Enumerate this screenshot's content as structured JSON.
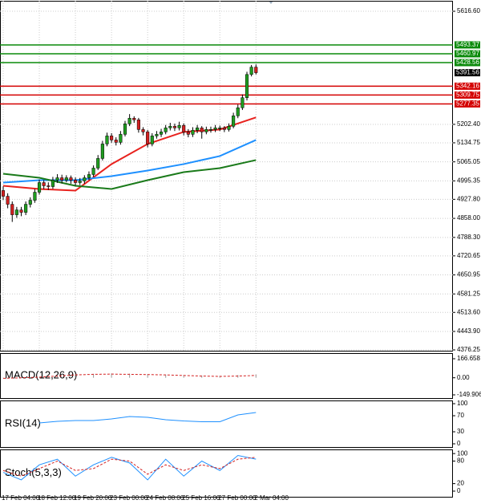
{
  "chart_data": [
    {
      "type": "candlestick",
      "categories": [
        "17 Feb 04:00",
        null,
        null,
        null,
        null,
        null,
        null,
        null,
        "18 Feb 12:00",
        null,
        null,
        null,
        null,
        null,
        null,
        null,
        "19 Feb 20:00",
        null,
        null,
        null,
        null,
        null,
        null,
        null,
        "23 Feb 00:00",
        null,
        null,
        null,
        null,
        null,
        null,
        null,
        "24 Feb 08:00",
        null,
        null,
        null,
        null,
        null,
        null,
        null,
        "25 Feb 16:00",
        null,
        null,
        null,
        null,
        null,
        null,
        null,
        "27 Feb 00:00",
        null,
        null,
        null,
        null,
        null,
        null,
        null,
        "2 Mar 04:00"
      ],
      "open": [
        4960,
        4939.0,
        4909.6,
        4871.3,
        4888.9,
        4880.1,
        4909.6,
        4924.3,
        4953.8,
        4989.1,
        4977.4,
        4974.4,
        4998.0,
        5006.8,
        4998.0,
        5006.8,
        4998.0,
        4989.1,
        4995.0,
        5006.8,
        5018.6,
        5042.1,
        5077.5,
        5130.5,
        5160.0,
        5145.2,
        5136.4,
        5165.9,
        5204.2,
        5224.8,
        5218.9,
        5183.5,
        5174.7,
        5130.5,
        5160.0,
        5165.9,
        5174.7,
        5189.4,
        5195.3,
        5189.4,
        5198.3,
        5174.7,
        5165.9,
        5180.6,
        5189.4,
        5174.7,
        5183.5,
        5183.5,
        5189.4,
        5189.4,
        5183.5,
        5195.3,
        5233.6,
        5263.1,
        5300,
        5385,
        5412
      ],
      "high": [
        4975,
        4950,
        4920,
        4900,
        4900,
        4920,
        4935,
        4965,
        5000,
        4998,
        4990,
        5010,
        5020,
        5018,
        5016,
        5015,
        5008,
        5006,
        5016,
        5030,
        5052,
        5090,
        5142,
        5172,
        5170,
        5155,
        5178,
        5215,
        5240,
        5232,
        5226,
        5192,
        5182,
        5170,
        5178,
        5186,
        5200,
        5208,
        5205,
        5212,
        5206,
        5185,
        5192,
        5200,
        5196,
        5194,
        5194,
        5200,
        5198,
        5196,
        5206,
        5245,
        5275,
        5312,
        5395,
        5420,
        5422
      ],
      "low": [
        4925,
        4895,
        4845,
        4860,
        4866,
        4870,
        4898,
        4915,
        4945,
        4965,
        4962,
        4966,
        4988,
        4986,
        4990,
        4985,
        4978,
        4980,
        4985,
        4998,
        5010,
        5035,
        5070,
        5122,
        5135,
        5125,
        5128,
        5158,
        5196,
        5208,
        5172,
        5162,
        5118,
        5122,
        5150,
        5156,
        5166,
        5180,
        5178,
        5180,
        5162,
        5155,
        5156,
        5170,
        5150,
        5166,
        5172,
        5174,
        5178,
        5174,
        5176,
        5188,
        5225,
        5255,
        5290,
        5378,
        5385
      ],
      "close": [
        4939.0,
        4909.6,
        4871.3,
        4888.9,
        4880.1,
        4909.6,
        4924.3,
        4953.8,
        4989.1,
        4977.4,
        4974.4,
        4998.0,
        5006.8,
        4998.0,
        5006.8,
        4998.0,
        4989.1,
        4995.0,
        5006.8,
        5018.6,
        5042.1,
        5077.5,
        5130.5,
        5160.0,
        5145.2,
        5136.4,
        5165.9,
        5204.2,
        5224.8,
        5218.9,
        5183.5,
        5174.7,
        5130.5,
        5160.0,
        5165.9,
        5174.7,
        5189.4,
        5195.3,
        5189.4,
        5198.3,
        5174.7,
        5165.9,
        5180.6,
        5189.4,
        5174.7,
        5183.5,
        5183.5,
        5189.4,
        5189.4,
        5183.5,
        5195.3,
        5233.6,
        5263.1,
        5300,
        5385,
        5412,
        5391.56
      ],
      "up_color": "#1f9d1f",
      "down_color": "#d42020",
      "series": [
        {
          "color": "#e8221e",
          "x": [
            0,
            8,
            16,
            24,
            32,
            40,
            48,
            56
          ],
          "values": [
            4977.4,
            4965.7,
            4959.7,
            5056.9,
            5130.5,
            5174.7,
            5183.5,
            5227.7
          ]
        },
        {
          "color": "#1e90ff",
          "x": [
            0,
            8,
            16,
            24,
            32,
            40,
            48,
            56
          ],
          "values": [
            4989.1,
            4998.0,
            4998.0,
            5012.7,
            5033.3,
            5056.9,
            5086.3,
            5145.2
          ]
        },
        {
          "color": "#1a7a1a",
          "x": [
            0,
            8,
            16,
            24,
            32,
            40,
            48,
            56
          ],
          "values": [
            5021.5,
            5006.8,
            4977.4,
            4965.7,
            4998.0,
            5027.4,
            5042.1,
            5071.6
          ]
        }
      ],
      "resistance": [
        5493.37,
        5460.97,
        5428.56
      ],
      "resistance_color": "#0a8a0a",
      "support": [
        5342.16,
        5309.75,
        5277.35
      ],
      "support_color": "#d40000",
      "price": 5391.56,
      "ylim": [
        4373.3,
        5654.9
      ],
      "yticks": [
        {
          "value": 5616.6,
          "label": "5616.60"
        },
        {
          "value": 5202.4,
          "label": "5202.40"
        },
        5134.75,
        5065.05,
        4995.35,
        {
          "value": 4927.8,
          "label": "4927.80"
        },
        {
          "value": 4858,
          "label": "4858.00"
        },
        {
          "value": 4788.3,
          "label": "4788.30"
        },
        4720.65,
        4650.95,
        4581.25,
        {
          "value": 4513.6,
          "label": "4513.60"
        },
        {
          "value": 4443.9,
          "label": "4443.90"
        },
        4376.25
      ],
      "grid": true
    },
    {
      "type": "line",
      "title": "MACD(12,26,9)",
      "series": [
        {
          "color": "#999999",
          "style": "bars",
          "x": [
            0,
            4,
            8,
            12,
            16,
            20,
            24,
            28,
            32,
            36,
            40,
            44,
            48,
            52,
            56
          ],
          "values": [
            -4,
            2,
            8,
            18,
            26,
            34,
            38,
            36,
            32,
            28,
            24,
            20,
            18,
            24,
            30
          ]
        },
        {
          "color": "#d42020",
          "style": "dashed",
          "x": [
            0,
            4,
            8,
            12,
            16,
            20,
            24,
            28,
            32,
            36,
            40,
            44,
            48,
            52,
            56
          ],
          "values": [
            -5,
            0,
            5,
            15,
            25,
            30,
            32,
            30,
            28,
            25,
            20,
            15,
            12,
            15,
            20
          ]
        }
      ],
      "ylim": [
        -178,
        216
      ],
      "yticks": [
        166.658,
        {
          "value": 0,
          "label": "0.00"
        },
        -149.906
      ]
    },
    {
      "type": "line",
      "title": "RSI(14)",
      "series": [
        {
          "color": "#1e90ff",
          "style": "solid",
          "x": [
            8,
            12,
            16,
            20,
            24,
            28,
            32,
            36,
            40,
            44,
            48,
            52,
            56
          ],
          "values": [
            52,
            56,
            58,
            58,
            62,
            68,
            66,
            60,
            57,
            55,
            55,
            72,
            78
          ]
        }
      ],
      "ylim": [
        -8,
        108
      ],
      "yticks": [
        100,
        70,
        30,
        0
      ]
    },
    {
      "type": "line",
      "title": "Stoch(5,3,3)",
      "series": [
        {
          "color": "#1e90ff",
          "style": "solid",
          "x": [
            0,
            4,
            8,
            12,
            16,
            20,
            24,
            28,
            32,
            36,
            40,
            44,
            48,
            52,
            56
          ],
          "values": [
            50,
            30,
            70,
            85,
            40,
            70,
            90,
            75,
            30,
            85,
            40,
            80,
            55,
            95,
            85
          ]
        },
        {
          "color": "#d42020",
          "style": "dashed",
          "x": [
            0,
            4,
            8,
            12,
            16,
            20,
            24,
            28,
            32,
            36,
            40,
            44,
            48,
            52,
            56
          ],
          "values": [
            55,
            40,
            60,
            80,
            55,
            60,
            85,
            80,
            45,
            70,
            55,
            70,
            60,
            85,
            90
          ]
        }
      ],
      "ylim": [
        -15,
        111
      ],
      "yticks": [
        100,
        80,
        20,
        0
      ]
    }
  ]
}
